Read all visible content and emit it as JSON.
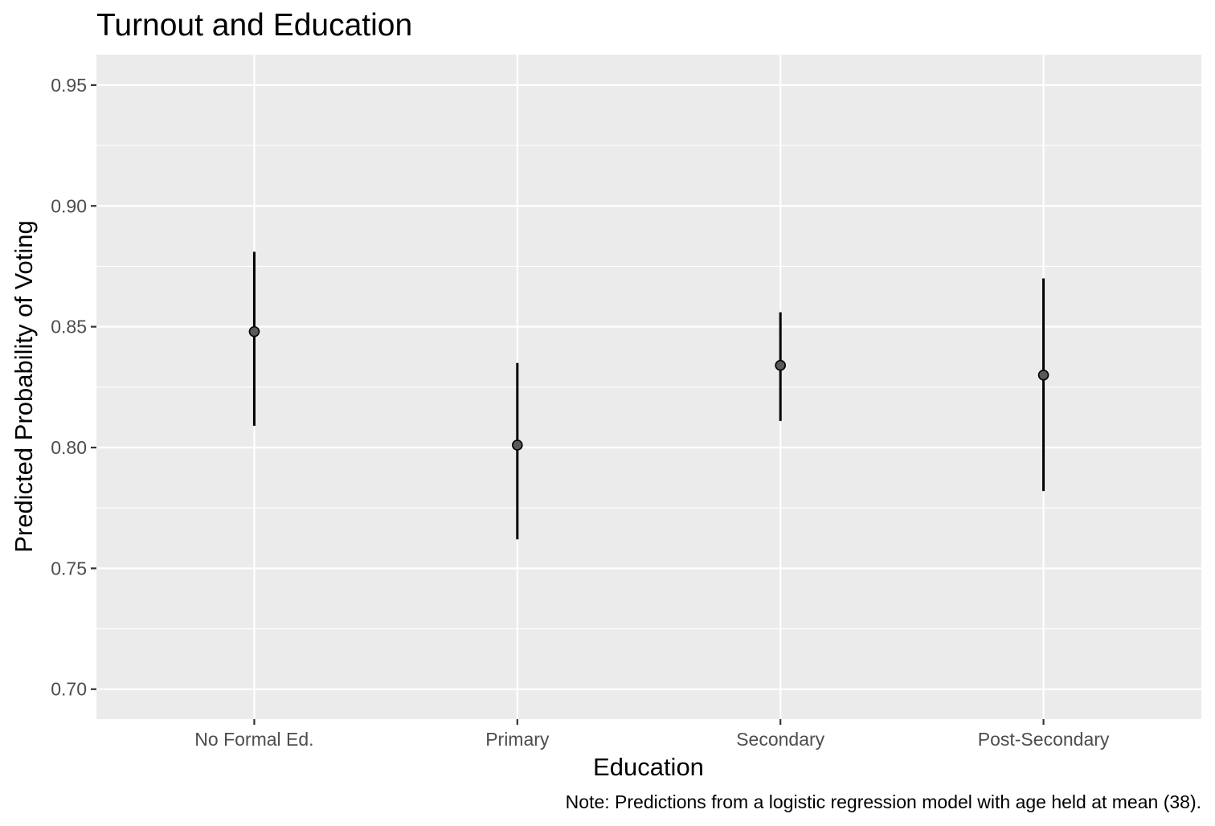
{
  "chart_data": {
    "type": "scatter",
    "title": "Turnout and Education",
    "xlabel": "Education",
    "ylabel": "Predicted Probability of Voting",
    "caption": "Note: Predictions from a logistic regression model with age held at mean (38).",
    "categories": [
      "No Formal Ed.",
      "Primary",
      "Secondary",
      "Post-Secondary"
    ],
    "series": [
      {
        "values": [
          0.848,
          0.801,
          0.834,
          0.83
        ],
        "lower": [
          0.809,
          0.762,
          0.811,
          0.782
        ],
        "upper": [
          0.881,
          0.835,
          0.856,
          0.87
        ]
      }
    ],
    "ylim": [
      0.6876,
      0.9626
    ],
    "yticks": [
      0.7,
      0.75,
      0.8,
      0.85,
      0.9,
      0.95
    ],
    "ytick_labels": [
      "0.70",
      "0.75",
      "0.80",
      "0.85",
      "0.90",
      "0.95"
    ],
    "grid": true,
    "legend": "none",
    "colors": {
      "panel": "#ebebeb",
      "grid": "#ffffff",
      "point_fill": "#595959",
      "errorbar": "#000000",
      "tick_text": "#4d4d4d"
    }
  }
}
